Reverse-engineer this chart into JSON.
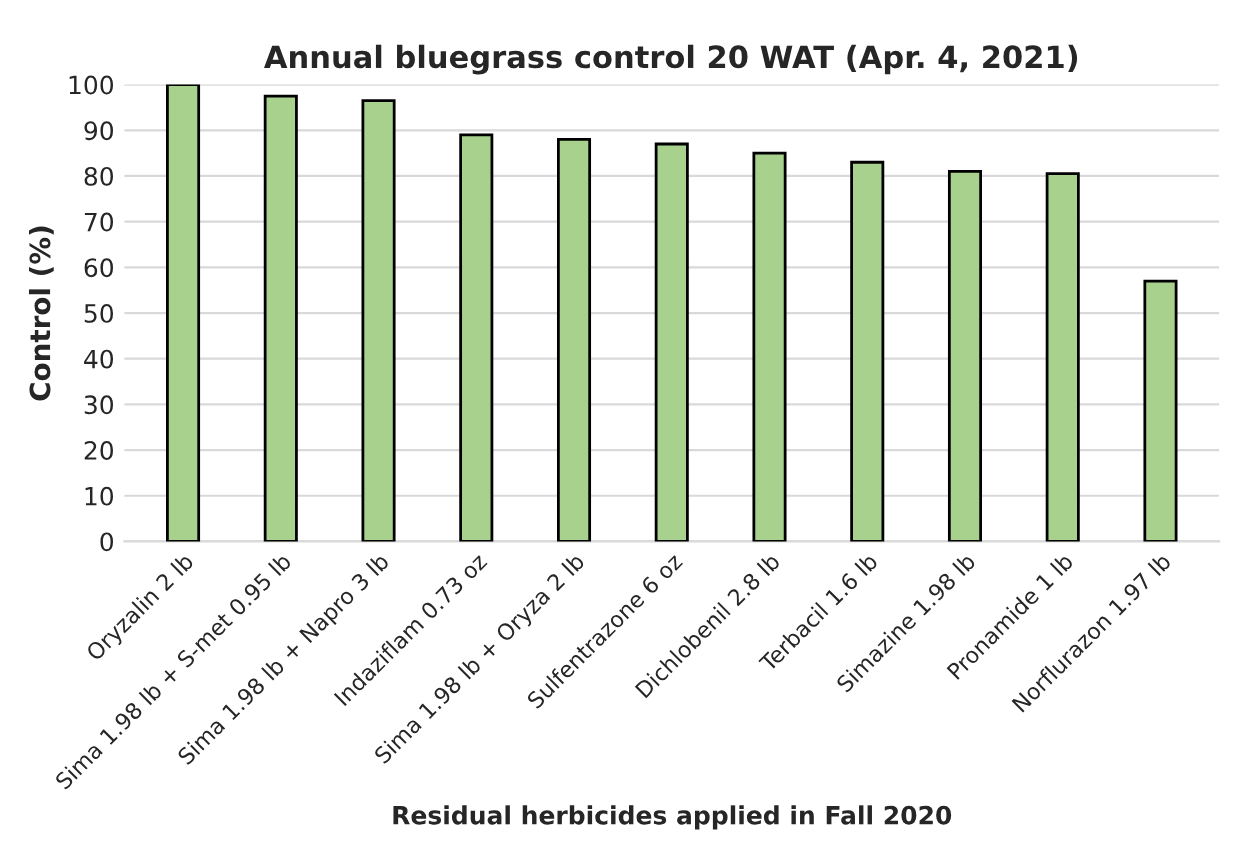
{
  "chart_data": {
    "type": "bar",
    "title": "Annual bluegrass control 20 WAT (Apr. 4, 2021)",
    "xlabel": "Residual herbicides applied in Fall 2020",
    "ylabel": "Control (%)",
    "categories": [
      "Oryzalin 2 lb",
      "Sima 1.98 lb + S-met 0.95 lb",
      "Sima 1.98 lb + Napro 3 lb",
      "Indaziflam 0.73 oz",
      "Sima 1.98 lb + Oryza 2 lb",
      "Sulfentrazone 6 oz",
      "Dichlobenil 2.8 lb",
      "Terbacil 1.6 lb",
      "Simazine 1.98 lb",
      "Pronamide 1 lb",
      "Norflurazon 1.97 lb"
    ],
    "values": [
      100,
      97.5,
      96.5,
      89,
      88,
      87,
      85,
      83,
      81,
      80.5,
      57
    ],
    "color": "#a9d18e",
    "ylim": [
      0,
      100
    ],
    "yticks": [
      0,
      10,
      20,
      30,
      40,
      50,
      60,
      70,
      80,
      90,
      100
    ],
    "grid": "y"
  }
}
